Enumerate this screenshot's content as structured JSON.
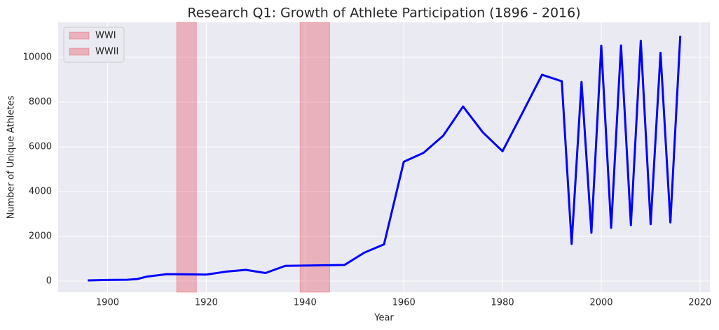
{
  "chart_data": {
    "type": "line",
    "title": "Research Q1: Growth of Athlete Participation (1896 - 2016)",
    "xlabel": "Year",
    "ylabel": "Number of Unique Athletes",
    "x": [
      1896,
      1900,
      1904,
      1906,
      1908,
      1912,
      1920,
      1924,
      1928,
      1932,
      1936,
      1948,
      1952,
      1956,
      1960,
      1964,
      1968,
      1972,
      1976,
      1980,
      1984,
      1988,
      1992,
      1994,
      1996,
      1998,
      2000,
      2002,
      2004,
      2006,
      2008,
      2010,
      2012,
      2014,
      2016
    ],
    "series": [
      {
        "color": "#0000ff",
        "values": [
          30,
          50,
          60,
          90,
          200,
          310,
          290,
          420,
          500,
          360,
          680,
          720,
          1270,
          1640,
          5330,
          5730,
          6500,
          7800,
          6650,
          5800,
          7500,
          9220,
          8930,
          1660,
          8900,
          2160,
          10520,
          2380,
          10530,
          2500,
          10740,
          2540,
          10200,
          2620,
          10960
        ]
      }
    ],
    "spans": [
      {
        "label": "WWI",
        "start": 1914,
        "end": 1918,
        "color": "#e8303a"
      },
      {
        "label": "WWII",
        "start": 1939,
        "end": 1945,
        "color": "#e8303a"
      }
    ],
    "xlim": [
      1890,
      2022
    ],
    "ylim": [
      -500,
      11560
    ],
    "xticks": [
      1900,
      1920,
      1940,
      1960,
      1980,
      2000,
      2020
    ],
    "yticks": [
      0,
      2000,
      4000,
      6000,
      8000,
      10000
    ],
    "grid": true,
    "legend": "upper left"
  }
}
